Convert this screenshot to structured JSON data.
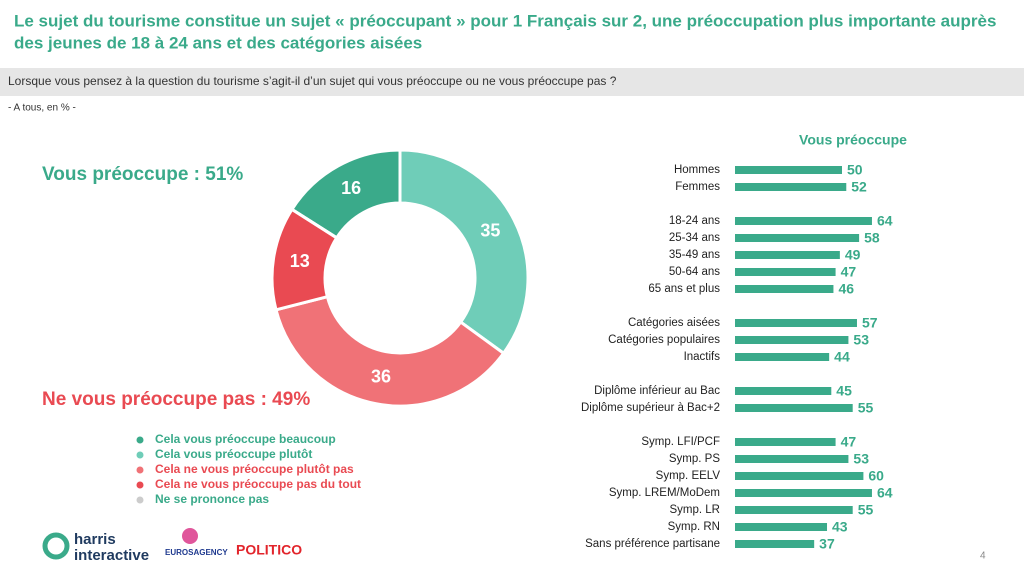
{
  "header": {
    "title_lines": [
      "Le sujet du tourisme constitue un sujet « préoccupant » pour 1 Français sur 2, une préoccupation plus importante auprès",
      "des jeunes de 18 à 24 ans et des catégories aisées"
    ],
    "question": "Lorsque vous pensez à la question du tourisme s’agit-il d’un sujet qui vous préoccupe ou ne vous préoccupe pas ?",
    "base": "- A tous, en % -"
  },
  "summary": {
    "positive": "Vous préoccupe : 51%",
    "negative": "Ne vous préoccupe pas : 49%"
  },
  "chart_data": [
    {
      "type": "donut",
      "series": [
        {
          "name": "Cela vous préoccupe beaucoup",
          "color": "#3aaa8a",
          "value": 16
        },
        {
          "name": "Cela vous préoccupe plutôt",
          "color": "#6fcdb8",
          "value": 35
        },
        {
          "name": "Cela ne vous préoccupe plutôt pas",
          "color": "#f07277",
          "value": 36
        },
        {
          "name": "Cela ne vous préoccupe pas du tout",
          "color": "#e94a52",
          "value": 13
        },
        {
          "name": "Ne se prononce pas",
          "color": "#cccccc",
          "value": 0
        }
      ]
    },
    {
      "type": "hbar",
      "title": "Vous préoccupe",
      "color": "#3aaa8a",
      "groups": [
        {
          "categories": [
            "Hommes",
            "Femmes"
          ],
          "values": [
            50,
            52
          ]
        },
        {
          "categories": [
            "18-24 ans",
            "25-34 ans",
            "35-49 ans",
            "50-64 ans",
            "65 ans et plus"
          ],
          "values": [
            64,
            58,
            49,
            47,
            46
          ]
        },
        {
          "categories": [
            "Catégories aisées",
            "Catégories populaires",
            "Inactifs"
          ],
          "values": [
            57,
            53,
            44
          ]
        },
        {
          "categories": [
            "Diplôme inférieur au Bac",
            "Diplôme supérieur à Bac+2"
          ],
          "values": [
            45,
            55
          ]
        },
        {
          "categories": [
            "Symp. LFI/PCF",
            "Symp. PS",
            "Symp. EELV",
            "Symp. LREM/MoDem",
            "Symp. LR",
            "Symp. RN",
            "Sans préférence partisane"
          ],
          "values": [
            47,
            53,
            60,
            64,
            55,
            43,
            37
          ]
        }
      ]
    }
  ],
  "footer": {
    "logo1a": "harris",
    "logo1b": "interactive",
    "logo2": "EUROSAGENCY",
    "logo3": "POLITICO",
    "page": "4"
  }
}
